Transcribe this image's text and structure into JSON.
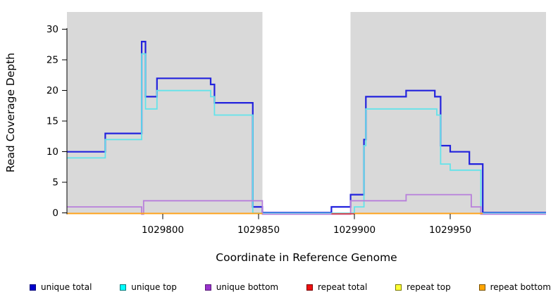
{
  "chart_data": {
    "type": "line",
    "subtype": "step-coverage",
    "xlabel": "Coordinate in Reference Genome",
    "ylabel": "Read Coverage Depth",
    "xlim": [
      1029750,
      1030000
    ],
    "ylim": [
      0,
      33
    ],
    "x_ticks": [
      "1029800",
      "1029850",
      "1029900",
      "1029950"
    ],
    "x_tick_values": [
      1029800,
      1029850,
      1029900,
      1029950
    ],
    "y_ticks": [
      "0",
      "5",
      "10",
      "15",
      "20",
      "25",
      "30"
    ],
    "y_tick_values": [
      0,
      5,
      10,
      15,
      20,
      25,
      30
    ],
    "grid": false,
    "background_shading": {
      "shade_color": "#d9d9d9",
      "gap_color": "#ffffff",
      "shaded_regions": [
        [
          1029750,
          1029852
        ],
        [
          1029898,
          1030000
        ]
      ]
    },
    "series": [
      {
        "name": "unique total",
        "color": "#2222dd",
        "width": 2.2,
        "zero_y_offset": -0.6,
        "segments": [
          [
            [
              1029750,
              10
            ],
            [
              1029770,
              13
            ],
            [
              1029789,
              28
            ],
            [
              1029791,
              19
            ],
            [
              1029797,
              22
            ],
            [
              1029825,
              21
            ],
            [
              1029827,
              18
            ],
            [
              1029847,
              1
            ],
            [
              1029852,
              0
            ],
            [
              1029888,
              1
            ],
            [
              1029898,
              3
            ],
            [
              1029905,
              12
            ],
            [
              1029906,
              19
            ],
            [
              1029927,
              20
            ],
            [
              1029942,
              19
            ],
            [
              1029945,
              11
            ],
            [
              1029950,
              10
            ],
            [
              1029960,
              8
            ],
            [
              1029967,
              0
            ],
            [
              1030000,
              0
            ]
          ]
        ]
      },
      {
        "name": "unique top",
        "color": "#63e3ea",
        "width": 1.8,
        "zero_y_offset": 0.2,
        "segments": [
          [
            [
              1029750,
              9
            ],
            [
              1029770,
              12
            ],
            [
              1029789,
              26
            ],
            [
              1029791,
              17
            ],
            [
              1029797,
              20
            ],
            [
              1029825,
              19
            ],
            [
              1029827,
              16
            ],
            [
              1029847,
              0
            ],
            [
              1029900,
              1
            ],
            [
              1029905,
              11
            ],
            [
              1029906,
              17
            ],
            [
              1029943,
              16
            ],
            [
              1029945,
              8
            ],
            [
              1029950,
              7
            ],
            [
              1029966,
              0
            ],
            [
              1030000,
              0
            ]
          ]
        ]
      },
      {
        "name": "unique bottom",
        "color": "#b87fdb",
        "width": 1.8,
        "zero_y_offset": 1.6,
        "segments": [
          [
            [
              1029750,
              1
            ],
            [
              1029789,
              0
            ],
            [
              1029790,
              2
            ],
            [
              1029852,
              0
            ],
            [
              1029898,
              2
            ],
            [
              1029927,
              3
            ],
            [
              1029961,
              1
            ],
            [
              1029966,
              0
            ],
            [
              1030000,
              0
            ]
          ]
        ]
      },
      {
        "name": "repeat total",
        "color": "#e04545",
        "width": 1.8,
        "zero_y_offset": 1.1,
        "segments": [
          [
            [
              1029888,
              0
            ],
            [
              1029900,
              0
            ]
          ]
        ]
      },
      {
        "name": "repeat top",
        "color": "#f5f533",
        "width": 1.8,
        "zero_y_offset": 0.7,
        "segments": []
      },
      {
        "name": "repeat bottom",
        "color": "#ffa41e",
        "width": 2.0,
        "zero_y_offset": 0.7,
        "segments": [
          [
            [
              1029750,
              0
            ],
            [
              1029852,
              0
            ]
          ],
          [
            [
              1029900,
              0
            ],
            [
              1029967,
              0
            ]
          ]
        ]
      }
    ]
  },
  "legend": {
    "items": [
      {
        "label": "unique total",
        "fill": "#0000cc",
        "border": "#00007a"
      },
      {
        "label": "unique top",
        "fill": "#00ffff",
        "border": "#007a7a"
      },
      {
        "label": "unique bottom",
        "fill": "#9933cc",
        "border": "#5a1a7a"
      },
      {
        "label": "repeat total",
        "fill": "#ee1111",
        "border": "#7a0000"
      },
      {
        "label": "repeat top",
        "fill": "#ffff33",
        "border": "#7a7a00"
      },
      {
        "label": "repeat bottom",
        "fill": "#ffa500",
        "border": "#7a5200"
      }
    ]
  }
}
